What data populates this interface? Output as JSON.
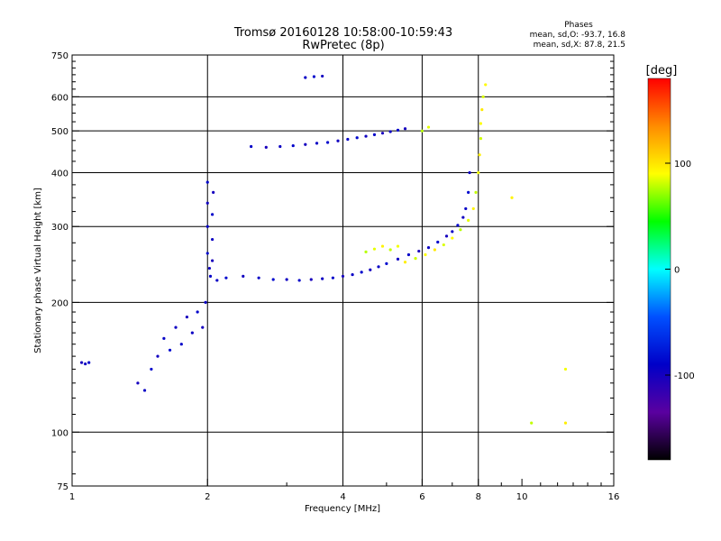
{
  "chart_data": {
    "type": "scatter",
    "title": "Tromsø 20160128 10:58:00-10:59:43",
    "subtitle": "RwPretec (8p)",
    "stats": {
      "heading": "Phases",
      "line_o": "mean, sd,O: -93.7, 16.8",
      "line_x": "mean, sd,X:  87.8, 21.5"
    },
    "xlabel": "Frequency [MHz]",
    "ylabel": "Stationary phase Virtual Height [km]",
    "xscale": "log",
    "yscale": "log",
    "xlim": [
      1,
      16
    ],
    "ylim": [
      75,
      750
    ],
    "grid": true,
    "x_ticks": [
      {
        "value": 1,
        "label": "1"
      },
      {
        "value": 2,
        "label": "2"
      },
      {
        "value": 4,
        "label": "4"
      },
      {
        "value": 6,
        "label": "6"
      },
      {
        "value": 8,
        "label": "8"
      },
      {
        "value": 10,
        "label": "10"
      },
      {
        "value": 16,
        "label": "16"
      }
    ],
    "y_ticks": [
      {
        "value": 75,
        "label": "75"
      },
      {
        "value": 100,
        "label": "100"
      },
      {
        "value": 200,
        "label": "200"
      },
      {
        "value": 300,
        "label": "300"
      },
      {
        "value": 400,
        "label": "400"
      },
      {
        "value": 500,
        "label": "500"
      },
      {
        "value": 600,
        "label": "600"
      },
      {
        "value": 750,
        "label": "750"
      }
    ],
    "x_gridlines": [
      2,
      4,
      6,
      8
    ],
    "y_gridlines": [
      100,
      200,
      300,
      400,
      500,
      600
    ],
    "colorbar": {
      "label": "[deg]",
      "range": [
        -180,
        180
      ],
      "ticks": [
        {
          "value": 100,
          "label": "100"
        },
        {
          "value": 0,
          "label": "0"
        },
        {
          "value": -100,
          "label": "-100"
        }
      ],
      "colors": [
        "#ff0000",
        "#ff8c00",
        "#ffff00",
        "#00ff00",
        "#00ffff",
        "#0050ff",
        "#0000c8",
        "#5a00a0",
        "#000000"
      ]
    },
    "series": [
      {
        "mode": "O",
        "phase_mean": -93.7,
        "phase_sd": 16.8,
        "points": [
          [
            1.05,
            145
          ],
          [
            1.07,
            144
          ],
          [
            1.09,
            145
          ],
          [
            1.4,
            130
          ],
          [
            1.45,
            125
          ],
          [
            1.5,
            140
          ],
          [
            1.55,
            150
          ],
          [
            1.6,
            165
          ],
          [
            1.65,
            155
          ],
          [
            1.7,
            175
          ],
          [
            1.75,
            160
          ],
          [
            1.8,
            185
          ],
          [
            1.85,
            170
          ],
          [
            1.9,
            190
          ],
          [
            1.95,
            175
          ],
          [
            1.98,
            200
          ],
          [
            2.0,
            380
          ],
          [
            2.0,
            340
          ],
          [
            2.0,
            300
          ],
          [
            2.0,
            260
          ],
          [
            2.02,
            240
          ],
          [
            2.03,
            230
          ],
          [
            2.05,
            250
          ],
          [
            2.05,
            280
          ],
          [
            2.05,
            320
          ],
          [
            2.06,
            360
          ],
          [
            2.1,
            225
          ],
          [
            2.2,
            228
          ],
          [
            2.4,
            230
          ],
          [
            2.6,
            228
          ],
          [
            2.8,
            226
          ],
          [
            3.0,
            226
          ],
          [
            3.2,
            225
          ],
          [
            3.4,
            226
          ],
          [
            3.6,
            227
          ],
          [
            3.8,
            228
          ],
          [
            4.0,
            230
          ],
          [
            4.2,
            232
          ],
          [
            4.4,
            235
          ],
          [
            4.6,
            238
          ],
          [
            4.8,
            242
          ],
          [
            5.0,
            246
          ],
          [
            5.3,
            252
          ],
          [
            5.6,
            258
          ],
          [
            5.9,
            263
          ],
          [
            6.2,
            268
          ],
          [
            6.5,
            276
          ],
          [
            6.8,
            285
          ],
          [
            7.0,
            292
          ],
          [
            7.2,
            302
          ],
          [
            7.4,
            315
          ],
          [
            7.5,
            330
          ],
          [
            7.6,
            360
          ],
          [
            7.65,
            400
          ],
          [
            2.5,
            460
          ],
          [
            2.7,
            458
          ],
          [
            2.9,
            460
          ],
          [
            3.1,
            462
          ],
          [
            3.3,
            465
          ],
          [
            3.5,
            468
          ],
          [
            3.7,
            470
          ],
          [
            3.9,
            474
          ],
          [
            4.1,
            478
          ],
          [
            4.3,
            482
          ],
          [
            4.5,
            486
          ],
          [
            4.7,
            490
          ],
          [
            4.9,
            494
          ],
          [
            5.1,
            498
          ],
          [
            5.3,
            502
          ],
          [
            5.5,
            506
          ],
          [
            3.3,
            665
          ],
          [
            3.45,
            668
          ],
          [
            3.6,
            670
          ]
        ]
      },
      {
        "mode": "X",
        "phase_mean": 87.8,
        "phase_sd": 21.5,
        "points": [
          [
            4.5,
            262
          ],
          [
            4.7,
            266
          ],
          [
            4.9,
            270
          ],
          [
            5.1,
            265
          ],
          [
            5.3,
            270
          ],
          [
            5.5,
            248
          ],
          [
            5.8,
            253
          ],
          [
            6.1,
            258
          ],
          [
            6.4,
            265
          ],
          [
            6.7,
            272
          ],
          [
            7.0,
            282
          ],
          [
            7.3,
            295
          ],
          [
            7.6,
            310
          ],
          [
            7.8,
            330
          ],
          [
            7.9,
            360
          ],
          [
            8.0,
            400
          ],
          [
            8.05,
            440
          ],
          [
            8.1,
            480
          ],
          [
            8.1,
            520
          ],
          [
            8.15,
            560
          ],
          [
            8.2,
            600
          ],
          [
            8.3,
            640
          ],
          [
            6.0,
            500
          ],
          [
            6.2,
            510
          ],
          [
            9.5,
            350
          ],
          [
            10.5,
            105
          ],
          [
            12.5,
            140
          ],
          [
            12.5,
            105
          ]
        ]
      }
    ]
  }
}
